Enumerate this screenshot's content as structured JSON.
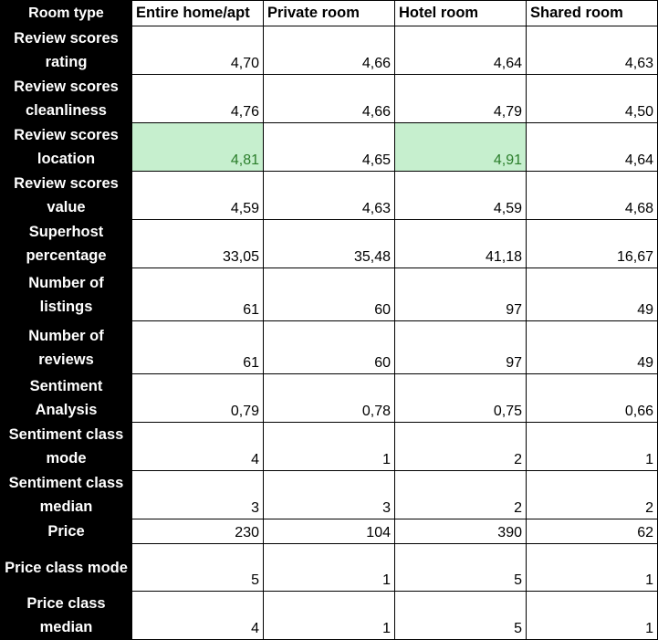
{
  "table": {
    "corner": "Room type",
    "columns": [
      "Entire home/apt",
      "Private room",
      "Hotel room",
      "Shared room"
    ],
    "rows": [
      {
        "label1": "Review scores",
        "label2": "rating",
        "values": [
          "4,70",
          "4,66",
          "4,64",
          "4,63"
        ],
        "highlight": [
          false,
          false,
          false,
          false
        ]
      },
      {
        "label1": "Review scores",
        "label2": "cleanliness",
        "values": [
          "4,76",
          "4,66",
          "4,79",
          "4,50"
        ],
        "highlight": [
          false,
          false,
          false,
          false
        ]
      },
      {
        "label1": "Review scores",
        "label2": "location",
        "values": [
          "4,81",
          "4,65",
          "4,91",
          "4,64"
        ],
        "highlight": [
          true,
          false,
          true,
          false
        ]
      },
      {
        "label1": "Review scores",
        "label2": "value",
        "values": [
          "4,59",
          "4,63",
          "4,59",
          "4,68"
        ],
        "highlight": [
          false,
          false,
          false,
          false
        ]
      },
      {
        "label1": "Superhost",
        "label2": "percentage",
        "values": [
          "33,05",
          "35,48",
          "41,18",
          "16,67"
        ],
        "highlight": [
          false,
          false,
          false,
          false
        ]
      },
      {
        "label1": "Number of",
        "label2": "listings",
        "values": [
          "61",
          "60",
          "97",
          "49"
        ],
        "highlight": [
          false,
          false,
          false,
          false
        ]
      },
      {
        "label1": "Number of",
        "label2": "reviews",
        "values": [
          "61",
          "60",
          "97",
          "49"
        ],
        "highlight": [
          false,
          false,
          false,
          false
        ]
      },
      {
        "label1": "Sentiment",
        "label2": "Analysis",
        "values": [
          "0,79",
          "0,78",
          "0,75",
          "0,66"
        ],
        "highlight": [
          false,
          false,
          false,
          false
        ]
      },
      {
        "label1": "Sentiment class",
        "label2": "mode",
        "values": [
          "4",
          "1",
          "2",
          "1"
        ],
        "highlight": [
          false,
          false,
          false,
          false
        ]
      },
      {
        "label1": "Sentiment class",
        "label2": "median",
        "values": [
          "3",
          "3",
          "2",
          "2"
        ],
        "highlight": [
          false,
          false,
          false,
          false
        ]
      },
      {
        "label1": "Price",
        "label2": "",
        "values": [
          "230",
          "104",
          "390",
          "62"
        ],
        "highlight": [
          false,
          false,
          false,
          false
        ]
      },
      {
        "label1": "Price class mode",
        "label2": "",
        "values": [
          "5",
          "1",
          "5",
          "1"
        ],
        "highlight": [
          false,
          false,
          false,
          false
        ]
      },
      {
        "label1": "Price class",
        "label2": "median",
        "values": [
          "4",
          "1",
          "5",
          "1"
        ],
        "highlight": [
          false,
          false,
          false,
          false
        ]
      }
    ],
    "colors": {
      "header_bg": "#000000",
      "header_text": "#ffffff",
      "highlight_bg": "#c6efce",
      "highlight_text": "#2a7d2a"
    }
  }
}
